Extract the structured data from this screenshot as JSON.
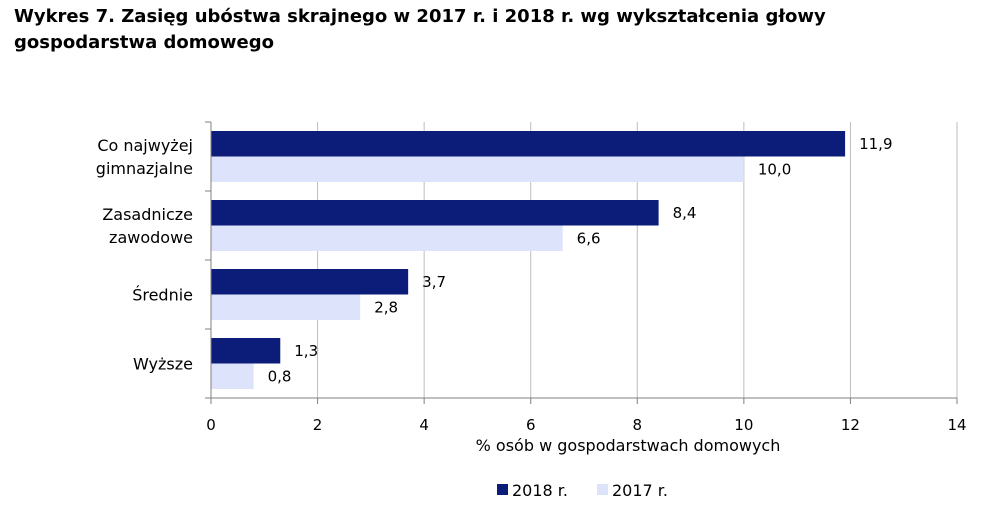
{
  "title": "Wykres 7. Zasięg ubóstwa skrajnego w 2017 r. i 2018 r. wg wykształcenia głowy gospodarstwa domowego",
  "chart_data": {
    "type": "bar",
    "orientation": "horizontal",
    "categories": [
      [
        "Co najwyżej",
        "gimnazjalne"
      ],
      [
        "Zasadnicze",
        "zawodowe"
      ],
      [
        "Średnie"
      ],
      [
        "Wyższe"
      ]
    ],
    "series": [
      {
        "name": "2018 r.",
        "color": "#0b1d78",
        "values": [
          11.9,
          8.4,
          3.7,
          1.3
        ],
        "labels": [
          "11,9",
          "8,4",
          "3,7",
          "1,3"
        ]
      },
      {
        "name": "2017 r.",
        "color": "#dce3fb",
        "values": [
          10.0,
          6.6,
          2.8,
          0.8
        ],
        "labels": [
          "10,0",
          "6,6",
          "2,8",
          "0,8"
        ]
      }
    ],
    "xlim": [
      0,
      14
    ],
    "xticks": [
      0,
      2,
      4,
      6,
      8,
      10,
      12,
      14
    ],
    "xtick_labels": [
      "0",
      "2",
      "4",
      "6",
      "8",
      "10",
      "12",
      "14"
    ],
    "xlabel": "% osób w gospodarstwach domowych",
    "grid": "vertical",
    "legend_position": "bottom-center"
  }
}
